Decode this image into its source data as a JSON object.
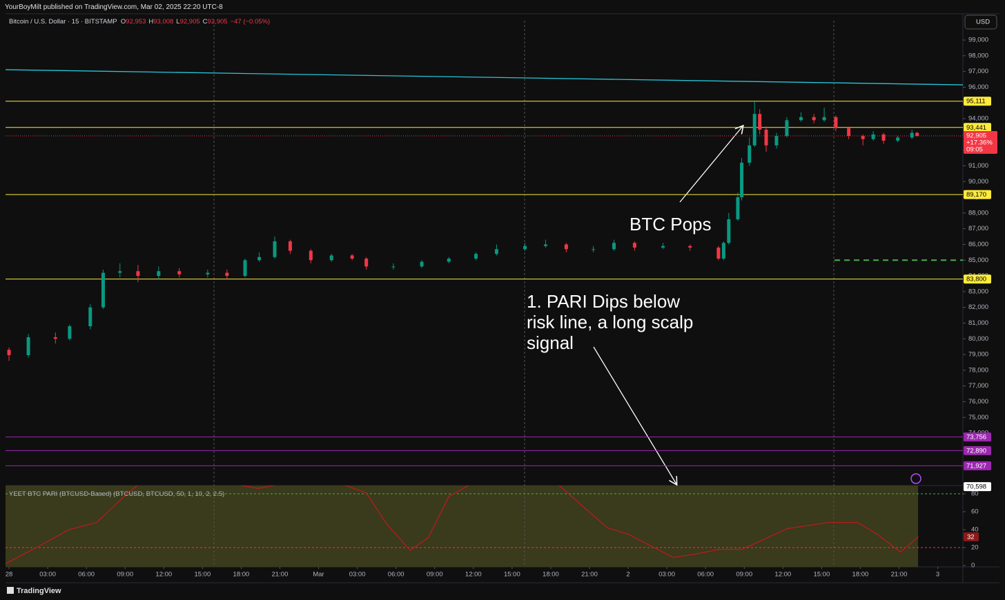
{
  "header": {
    "publisher": "YourBoyMilt published on TradingView.com, Mar 02, 2025 22:20 UTC-8"
  },
  "footer": {
    "brand": "TradingView"
  },
  "chart_data": [
    {
      "type": "candlestick",
      "title": "Bitcoin / U.S. Dollar · 15 · BITSTAMP",
      "quote": [
        {
          "prefix": "O",
          "value": 92953,
          "label": "92,953"
        },
        {
          "prefix": "H",
          "value": 93008,
          "label": "93,008"
        },
        {
          "prefix": "L",
          "value": 92905,
          "label": "92,905"
        },
        {
          "prefix": "C",
          "value": 92905,
          "label": "92,905"
        }
      ],
      "change_label": "−47 (−0.05%)",
      "currency": "USD",
      "up_color": "#089981",
      "down_color": "#f23645",
      "x": [
        0,
        1.5,
        3.6,
        4.7,
        6.3,
        7.3,
        8.6,
        10,
        11.6,
        13.2,
        15.4,
        16.9,
        18.3,
        19.4,
        20.6,
        21.8,
        23.4,
        25,
        26.6,
        27.7,
        29.8,
        32,
        34.1,
        36.2,
        37.8,
        40,
        41.6,
        43.2,
        45.3,
        46.9,
        48.5,
        50.7,
        52.8,
        55,
        55.4,
        55.8,
        56.5,
        56.8,
        57.4,
        57.8,
        58.2,
        58.7,
        59.5,
        60.3,
        61.4,
        62.4,
        63.2,
        64.1,
        65.1,
        66.2,
        67,
        67.8,
        68.9,
        70,
        70.4
      ],
      "open": [
        79300,
        78960,
        80100,
        80000,
        80800,
        82000,
        84200,
        84300,
        84000,
        84300,
        84100,
        84200,
        84000,
        85000,
        85200,
        86200,
        85600,
        85000,
        85300,
        85100,
        84600,
        84600,
        84900,
        85100,
        85400,
        85700,
        85900,
        86000,
        85700,
        85700,
        86100,
        85800,
        85900,
        85800,
        85100,
        86100,
        87600,
        89000,
        91200,
        92300,
        94300,
        93300,
        92300,
        92900,
        93900,
        94100,
        93900,
        94100,
        93400,
        92900,
        92700,
        93000,
        92600,
        92800,
        93100
      ],
      "high": [
        79450,
        80300,
        80400,
        80900,
        82200,
        84400,
        84800,
        84700,
        84600,
        84500,
        84400,
        84400,
        85100,
        85500,
        86500,
        86300,
        85700,
        85400,
        85400,
        85200,
        84800,
        85000,
        85200,
        85500,
        86000,
        86100,
        86300,
        86100,
        85900,
        86300,
        86200,
        86100,
        86000,
        85900,
        86200,
        88000,
        89300,
        91500,
        92800,
        95100,
        94600,
        93500,
        93100,
        94100,
        94400,
        94300,
        94700,
        94200,
        93500,
        93000,
        93200,
        93100,
        92900,
        93300,
        93150
      ],
      "low": [
        78600,
        78800,
        79700,
        79900,
        80600,
        81900,
        83900,
        83600,
        83800,
        83900,
        83900,
        83800,
        83900,
        84900,
        85100,
        85400,
        84800,
        84900,
        85000,
        84400,
        84400,
        84500,
        84800,
        85000,
        85300,
        85600,
        85800,
        85500,
        85500,
        85600,
        85600,
        85700,
        85600,
        85000,
        85000,
        86000,
        87500,
        88800,
        91000,
        92200,
        93000,
        91900,
        92100,
        92800,
        93800,
        93700,
        93800,
        93200,
        92700,
        92300,
        92600,
        92400,
        92500,
        92700,
        92850
      ],
      "close": [
        78960,
        80100,
        80000,
        80800,
        82000,
        84200,
        84300,
        84000,
        84300,
        84100,
        84200,
        84000,
        85000,
        85200,
        86200,
        85600,
        85000,
        85300,
        85100,
        84600,
        84600,
        84900,
        85100,
        85400,
        85700,
        85900,
        86000,
        85700,
        85700,
        86100,
        85800,
        85900,
        85800,
        85100,
        86100,
        87600,
        89000,
        91200,
        92300,
        94300,
        93300,
        92300,
        92900,
        93900,
        94100,
        93900,
        94100,
        93400,
        92900,
        92700,
        93000,
        92600,
        92800,
        93100,
        92905
      ],
      "xlim": [
        -0.27,
        73.95
      ],
      "ylim": [
        70670,
        100230
      ],
      "yticks": [
        {
          "value": 74000,
          "label": "74,000"
        },
        {
          "value": 75000,
          "label": "75,000"
        },
        {
          "value": 76000,
          "label": "76,000"
        },
        {
          "value": 77000,
          "label": "77,000"
        },
        {
          "value": 78000,
          "label": "78,000"
        },
        {
          "value": 79000,
          "label": "79,000"
        },
        {
          "value": 80000,
          "label": "80,000"
        },
        {
          "value": 81000,
          "label": "81,000"
        },
        {
          "value": 82000,
          "label": "82,000"
        },
        {
          "value": 83000,
          "label": "83,000"
        },
        {
          "value": 84000,
          "label": "84,000"
        },
        {
          "value": 85000,
          "label": "85,000"
        },
        {
          "value": 86000,
          "label": "86,000"
        },
        {
          "value": 87000,
          "label": "87,000"
        },
        {
          "value": 88000,
          "label": "88,000"
        },
        {
          "value": 89000,
          "label": "89,000"
        },
        {
          "value": 90000,
          "label": "90,000"
        },
        {
          "value": 91000,
          "label": "91,000"
        },
        {
          "value": 92000,
          "label": "92,000"
        },
        {
          "value": 93000,
          "label": "93,000"
        },
        {
          "value": 94000,
          "label": "94,000"
        },
        {
          "value": 95000,
          "label": "95,000"
        },
        {
          "value": 96000,
          "label": "96,000"
        },
        {
          "value": 97000,
          "label": "97,000"
        },
        {
          "value": 98000,
          "label": "98,000"
        },
        {
          "value": 99000,
          "label": "99,000"
        }
      ],
      "levels": [
        {
          "value": 95111,
          "label": "95,111",
          "color": "#ffeb3b"
        },
        {
          "value": 93441,
          "label": "93,441",
          "color": "#ffeb3b"
        },
        {
          "value": 89170,
          "label": "89,170",
          "color": "#ffeb3b"
        },
        {
          "value": 83800,
          "label": "83,800",
          "color": "#ffeb3b"
        },
        {
          "value": 73756,
          "label": "73,756",
          "color": "#9c27b0"
        },
        {
          "value": 72890,
          "label": "72,890",
          "color": "#9c27b0"
        },
        {
          "value": 71927,
          "label": "71,927",
          "color": "#9c27b0"
        }
      ],
      "trendline": {
        "x": [
          -0.27,
          73.95
        ],
        "values": [
          97114,
          96149
        ],
        "color": "#26c6da"
      },
      "target_line": {
        "x": [
          64,
          73.95
        ],
        "value": 85000,
        "color": "#4caf50"
      },
      "last_price": {
        "value": 92905,
        "label": "92,905",
        "change_label": "+17.36%",
        "countdown": "09:05",
        "color": "#f23645"
      },
      "scale_low": {
        "value": 70598,
        "label": "70,598"
      },
      "annotations": [
        {
          "text": "BTC Pops"
        },
        {
          "lines": [
            "1. PARI Dips below",
            "risk line, a long scalp",
            "signal"
          ]
        }
      ]
    },
    {
      "type": "line",
      "title": "YEET BTC PARI (BTCUSD-Based) (BTCUSD, BTCUSD, 50, 1, 10, 2, 2.5)",
      "color": "#b71c1c",
      "x": [
        -0.27,
        2.51,
        4.65,
        6.8,
        8.93,
        10,
        13.2,
        16.96,
        19.3,
        21.5,
        24,
        27.7,
        29.3,
        31.1,
        32.5,
        34.1,
        35.7,
        38,
        41.5,
        42.6,
        44.8,
        46.4,
        48,
        49.6,
        51.5,
        53.3,
        55,
        56.8,
        58.2,
        60.3,
        63.5,
        65.8,
        67.3,
        69.1,
        70.5
      ],
      "values": [
        2,
        23,
        40,
        48,
        77,
        90,
        100,
        92,
        86,
        92,
        100,
        81,
        46,
        17,
        31,
        77,
        90,
        100,
        100,
        90,
        62,
        42,
        35,
        23,
        9,
        13,
        18,
        18,
        27,
        41,
        48,
        48,
        35,
        15,
        32
      ],
      "xlim": [
        -0.27,
        73.95
      ],
      "ylim": [
        -1.5,
        89.2
      ],
      "yticks": [
        0,
        20,
        40,
        60,
        80
      ],
      "levels": [
        {
          "value": 80,
          "color": "#4caf50"
        },
        {
          "value": 20,
          "color": "#f23645"
        }
      ],
      "last_value": 32,
      "xticks": [
        {
          "value": 0,
          "label": "28"
        },
        {
          "value": 3,
          "label": "03:00"
        },
        {
          "value": 6,
          "label": "06:00"
        },
        {
          "value": 9,
          "label": "09:00"
        },
        {
          "value": 12,
          "label": "12:00"
        },
        {
          "value": 15,
          "label": "15:00"
        },
        {
          "value": 18,
          "label": "18:00"
        },
        {
          "value": 21,
          "label": "21:00"
        },
        {
          "value": 24,
          "label": "Mar"
        },
        {
          "value": 27,
          "label": "03:00"
        },
        {
          "value": 30,
          "label": "06:00"
        },
        {
          "value": 33,
          "label": "09:00"
        },
        {
          "value": 36,
          "label": "12:00"
        },
        {
          "value": 39,
          "label": "15:00"
        },
        {
          "value": 42,
          "label": "18:00"
        },
        {
          "value": 45,
          "label": "21:00"
        },
        {
          "value": 48,
          "label": "2"
        },
        {
          "value": 51,
          "label": "03:00"
        },
        {
          "value": 54,
          "label": "06:00"
        },
        {
          "value": 57,
          "label": "09:00"
        },
        {
          "value": 60,
          "label": "12:00"
        },
        {
          "value": 63,
          "label": "15:00"
        },
        {
          "value": 66,
          "label": "18:00"
        },
        {
          "value": 69,
          "label": "21:00"
        },
        {
          "value": 72,
          "label": "3"
        }
      ]
    }
  ]
}
